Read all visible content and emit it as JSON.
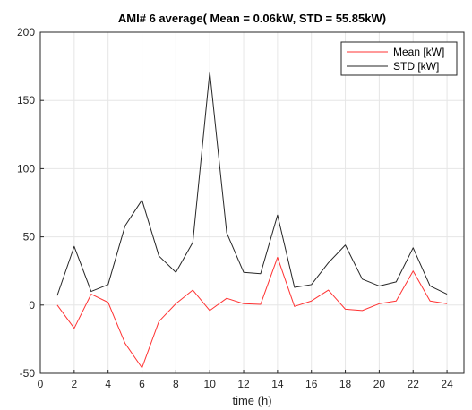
{
  "chart_data": {
    "type": "line",
    "title": "AMI# 6   average( Mean = 0.06kW, STD = 55.85kW)",
    "xlabel": "time (h)",
    "ylabel": "",
    "xlim": [
      0,
      25
    ],
    "ylim": [
      -50,
      200
    ],
    "xticks": [
      "0",
      "2",
      "4",
      "6",
      "8",
      "10",
      "12",
      "14",
      "16",
      "18",
      "20",
      "22",
      "24"
    ],
    "yticks": [
      "-50",
      "0",
      "50",
      "100",
      "150",
      "200"
    ],
    "grid": true,
    "legend_position": "top-right",
    "x": [
      1,
      2,
      3,
      4,
      5,
      6,
      7,
      8,
      9,
      10,
      11,
      12,
      13,
      14,
      15,
      16,
      17,
      18,
      19,
      20,
      21,
      22,
      23,
      24
    ],
    "series": [
      {
        "name": "Mean [kW]",
        "color": "#ff3333",
        "values": [
          0,
          -17,
          8,
          2,
          -28,
          -46,
          -12,
          1,
          11,
          -4,
          5,
          1,
          0.5,
          35,
          -1,
          3,
          11,
          -3,
          -4,
          1,
          3,
          25,
          3,
          1
        ]
      },
      {
        "name": "STD [kW]",
        "color": "#262626",
        "values": [
          7,
          43,
          10,
          15,
          58,
          77,
          36,
          24,
          46,
          171,
          53,
          24,
          23,
          66,
          13,
          15,
          31,
          44,
          19,
          14,
          17,
          42,
          14,
          8
        ]
      }
    ]
  }
}
